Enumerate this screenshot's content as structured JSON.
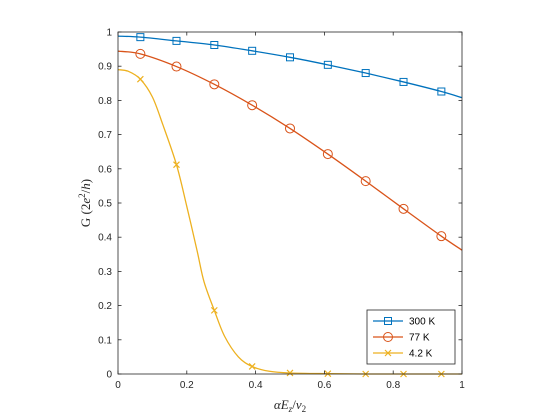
{
  "chart_data": {
    "type": "line",
    "xlabel": "αE_z/ν_2",
    "ylabel": "G (2e²/h)",
    "xlim": [
      0,
      1
    ],
    "ylim": [
      0,
      1
    ],
    "xticks": [
      "0",
      "0.2",
      "0.4",
      "0.6",
      "0.8",
      "1"
    ],
    "yticks": [
      "0",
      "0.1",
      "0.2",
      "0.3",
      "0.4",
      "0.5",
      "0.6",
      "0.7",
      "0.8",
      "0.9",
      "1"
    ],
    "grid": false,
    "legend_position": "bottom-right",
    "series": [
      {
        "name": "300 K",
        "color": "#0072BD",
        "marker": "square",
        "x": [
          0,
          0.065,
          0.17,
          0.28,
          0.39,
          0.5,
          0.61,
          0.72,
          0.83,
          0.94,
          1.0
        ],
        "y": [
          0.988,
          0.985,
          0.974,
          0.962,
          0.945,
          0.926,
          0.904,
          0.88,
          0.854,
          0.826,
          0.808
        ],
        "markers_x": [
          0.065,
          0.17,
          0.28,
          0.39,
          0.5,
          0.61,
          0.72,
          0.83,
          0.94
        ],
        "markers_y": [
          0.985,
          0.974,
          0.962,
          0.945,
          0.926,
          0.904,
          0.88,
          0.854,
          0.826
        ]
      },
      {
        "name": "77 K",
        "color": "#D95319",
        "marker": "circle",
        "x": [
          0,
          0.065,
          0.17,
          0.28,
          0.39,
          0.5,
          0.61,
          0.72,
          0.83,
          0.94,
          1.0
        ],
        "y": [
          0.944,
          0.936,
          0.899,
          0.847,
          0.786,
          0.718,
          0.643,
          0.564,
          0.483,
          0.403,
          0.362
        ],
        "markers_x": [
          0.065,
          0.17,
          0.28,
          0.39,
          0.5,
          0.61,
          0.72,
          0.83,
          0.94
        ],
        "markers_y": [
          0.936,
          0.899,
          0.847,
          0.786,
          0.718,
          0.643,
          0.564,
          0.483,
          0.403
        ]
      },
      {
        "name": "4.2 K",
        "color": "#EDB120",
        "marker": "x",
        "x": [
          0,
          0.03,
          0.065,
          0.1,
          0.13,
          0.17,
          0.2,
          0.23,
          0.25,
          0.28,
          0.31,
          0.35,
          0.39,
          0.44,
          0.5,
          0.61,
          0.72,
          0.83,
          0.94,
          1.0
        ],
        "y": [
          0.89,
          0.885,
          0.862,
          0.81,
          0.73,
          0.612,
          0.49,
          0.36,
          0.27,
          0.186,
          0.11,
          0.05,
          0.022,
          0.008,
          0.003,
          0.001,
          0.0,
          0.0,
          0.0,
          0.0
        ],
        "markers_x": [
          0.065,
          0.17,
          0.28,
          0.39,
          0.5,
          0.61,
          0.72,
          0.83,
          0.94
        ],
        "markers_y": [
          0.862,
          0.612,
          0.186,
          0.022,
          0.003,
          0.001,
          0.0,
          0.0,
          0.0
        ]
      }
    ]
  }
}
